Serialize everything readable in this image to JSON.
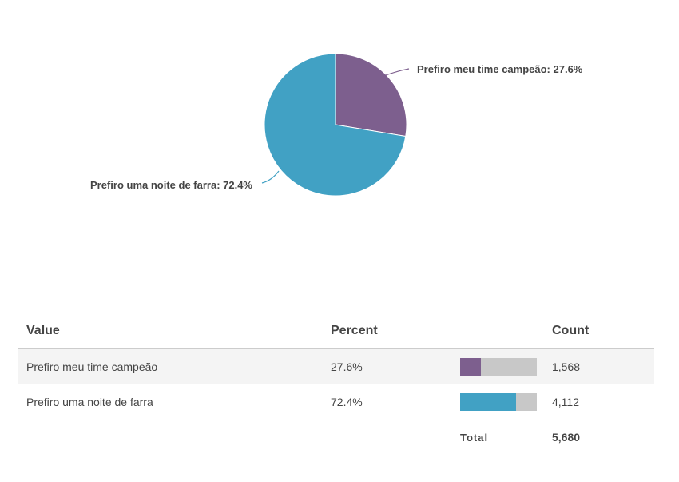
{
  "chart_data": {
    "type": "pie",
    "slices": [
      {
        "label": "Prefiro meu time campeão",
        "percent": 27.6,
        "count": 1568,
        "color": "#7d5f8e",
        "label_text": "Prefiro meu time campeão: 27.6%"
      },
      {
        "label": "Prefiro uma noite de farra",
        "percent": 72.4,
        "count": 4112,
        "color": "#41a1c4",
        "label_text": "Prefiro uma noite de farra: 72.4%"
      }
    ]
  },
  "table": {
    "headers": {
      "value": "Value",
      "percent": "Percent",
      "count": "Count"
    },
    "rows": [
      {
        "value": "Prefiro meu time campeão",
        "percent": "27.6%",
        "count": "1,568",
        "fraction": 0.276,
        "color": "#7d5f8e"
      },
      {
        "value": "Prefiro uma noite de farra",
        "percent": "72.4%",
        "count": "4,112",
        "fraction": 0.724,
        "color": "#41a1c4"
      }
    ],
    "total_label": "Total",
    "total_count": "5,680"
  }
}
